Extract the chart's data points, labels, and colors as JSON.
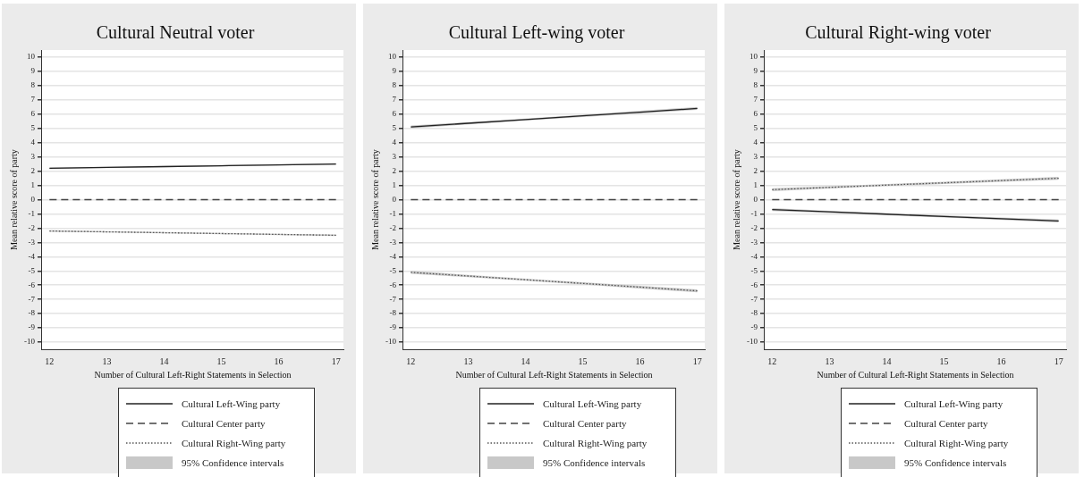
{
  "chart_data": [
    {
      "type": "line",
      "title": "Cultural Neutral voter",
      "xlabel": "Number of Cultural Left-Right Statements in Selection",
      "ylabel": "Mean relative score of party",
      "x": [
        12,
        13,
        14,
        15,
        16,
        17
      ],
      "xlim": [
        11.87,
        17.13
      ],
      "xticks": [
        12,
        13,
        14,
        15,
        16,
        17
      ],
      "ylim": [
        -10.5,
        10.5
      ],
      "yticks": [
        -10,
        -9,
        -8,
        -7,
        -6,
        -5,
        -4,
        -3,
        -2,
        -1,
        0,
        1,
        2,
        3,
        4,
        5,
        6,
        7,
        8,
        9,
        10
      ],
      "grid": "y",
      "legend": "bottom",
      "marker": "none",
      "annotations": [
        "95% Confidence intervals"
      ],
      "series": [
        {
          "name": "Cultural Left-Wing party",
          "color": "#222222",
          "line_style": "solid",
          "values": [
            2.2,
            2.26,
            2.32,
            2.38,
            2.44,
            2.5
          ],
          "lower": [
            2.15,
            2.21,
            2.27,
            2.33,
            2.39,
            2.45
          ],
          "upper": [
            2.25,
            2.31,
            2.37,
            2.43,
            2.49,
            2.55
          ]
        },
        {
          "name": "Cultural Center party",
          "color": "#444444",
          "line_style": "dashed",
          "values": [
            0,
            0,
            0,
            0,
            0,
            0
          ]
        },
        {
          "name": "Cultural Right-Wing party",
          "color": "#555555",
          "line_style": "dotted",
          "values": [
            -2.2,
            -2.26,
            -2.32,
            -2.38,
            -2.44,
            -2.5
          ],
          "lower": [
            -2.25,
            -2.31,
            -2.37,
            -2.43,
            -2.49,
            -2.55
          ],
          "upper": [
            -2.15,
            -2.21,
            -2.27,
            -2.33,
            -2.39,
            -2.45
          ]
        }
      ]
    },
    {
      "type": "line",
      "title": "Cultural Left-wing voter",
      "xlabel": "Number of Cultural Left-Right Statements in Selection",
      "ylabel": "Mean relative score of party",
      "x": [
        12,
        13,
        14,
        15,
        16,
        17
      ],
      "xlim": [
        11.87,
        17.13
      ],
      "xticks": [
        12,
        13,
        14,
        15,
        16,
        17
      ],
      "ylim": [
        -10.5,
        10.5
      ],
      "yticks": [
        -10,
        -9,
        -8,
        -7,
        -6,
        -5,
        -4,
        -3,
        -2,
        -1,
        0,
        1,
        2,
        3,
        4,
        5,
        6,
        7,
        8,
        9,
        10
      ],
      "grid": "y",
      "legend": "bottom",
      "marker": "none",
      "annotations": [
        "95% Confidence intervals"
      ],
      "series": [
        {
          "name": "Cultural Left-Wing party",
          "color": "#222222",
          "line_style": "solid",
          "values": [
            5.1,
            5.36,
            5.62,
            5.88,
            6.14,
            6.4
          ],
          "lower": [
            5.0,
            5.28,
            5.55,
            5.8,
            6.05,
            6.3
          ],
          "upper": [
            5.2,
            5.44,
            5.69,
            5.96,
            6.23,
            6.5
          ]
        },
        {
          "name": "Cultural Center party",
          "color": "#444444",
          "line_style": "dashed",
          "values": [
            0,
            0,
            0,
            0,
            0,
            0
          ]
        },
        {
          "name": "Cultural Right-Wing party",
          "color": "#555555",
          "line_style": "dotted",
          "values": [
            -5.1,
            -5.36,
            -5.62,
            -5.88,
            -6.14,
            -6.4
          ],
          "lower": [
            -5.2,
            -5.44,
            -5.69,
            -5.96,
            -6.23,
            -6.5
          ],
          "upper": [
            -5.0,
            -5.28,
            -5.55,
            -5.8,
            -6.05,
            -6.3
          ]
        }
      ]
    },
    {
      "type": "line",
      "title": "Cultural Right-wing voter",
      "xlabel": "Number of Cultural Left-Right Statements in Selection",
      "ylabel": "Mean relative score of party",
      "x": [
        12,
        13,
        14,
        15,
        16,
        17
      ],
      "xlim": [
        11.87,
        17.13
      ],
      "xticks": [
        12,
        13,
        14,
        15,
        16,
        17
      ],
      "ylim": [
        -10.5,
        10.5
      ],
      "yticks": [
        -10,
        -9,
        -8,
        -7,
        -6,
        -5,
        -4,
        -3,
        -2,
        -1,
        0,
        1,
        2,
        3,
        4,
        5,
        6,
        7,
        8,
        9,
        10
      ],
      "grid": "y",
      "legend": "bottom",
      "marker": "none",
      "annotations": [
        "95% Confidence intervals"
      ],
      "series": [
        {
          "name": "Cultural Left-Wing party",
          "color": "#222222",
          "line_style": "solid",
          "values": [
            -0.7,
            -0.86,
            -1.02,
            -1.18,
            -1.34,
            -1.5
          ],
          "lower": [
            -0.8,
            -0.94,
            -1.09,
            -1.26,
            -1.43,
            -1.6
          ],
          "upper": [
            -0.6,
            -0.78,
            -0.95,
            -1.1,
            -1.25,
            -1.4
          ]
        },
        {
          "name": "Cultural Center party",
          "color": "#444444",
          "line_style": "dashed",
          "values": [
            0,
            0,
            0,
            0,
            0,
            0
          ]
        },
        {
          "name": "Cultural Right-Wing party",
          "color": "#555555",
          "line_style": "dotted",
          "values": [
            0.7,
            0.86,
            1.02,
            1.18,
            1.34,
            1.5
          ],
          "lower": [
            0.6,
            0.78,
            0.95,
            1.1,
            1.25,
            1.4
          ],
          "upper": [
            0.8,
            0.94,
            1.09,
            1.26,
            1.43,
            1.6
          ]
        }
      ]
    }
  ]
}
